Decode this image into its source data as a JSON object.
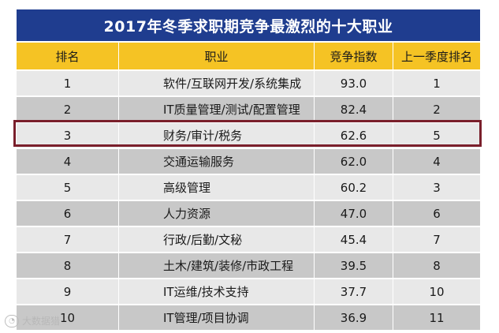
{
  "title": "2017年冬季求职期竞争最激烈的十大职业",
  "headers": [
    "排名",
    "职业",
    "竞争指数",
    "上一季度排名"
  ],
  "rows": [
    {
      "rank": "1",
      "job": "软件/互联网开发/系统集成",
      "score": "93.0",
      "prev": "1"
    },
    {
      "rank": "2",
      "job": "IT质量管理/测试/配置管理",
      "score": "82.4",
      "prev": "2"
    },
    {
      "rank": "3",
      "job": "财务/审计/税务",
      "score": "62.6",
      "prev": "5"
    },
    {
      "rank": "4",
      "job": "交通运输服务",
      "score": "62.0",
      "prev": "4"
    },
    {
      "rank": "5",
      "job": "高级管理",
      "score": "60.2",
      "prev": "3"
    },
    {
      "rank": "6",
      "job": "人力资源",
      "score": "47.0",
      "prev": "6"
    },
    {
      "rank": "7",
      "job": "行政/后勤/文秘",
      "score": "45.4",
      "prev": "7"
    },
    {
      "rank": "8",
      "job": "土木/建筑/装修/市政工程",
      "score": "39.5",
      "prev": "8"
    },
    {
      "rank": "9",
      "job": "IT运维/技术支持",
      "score": "37.7",
      "prev": "10"
    },
    {
      "rank": "10",
      "job": "IT管理/项目协调",
      "score": "36.9",
      "prev": "11"
    }
  ],
  "highlighted_rank": "3",
  "watermark": {
    "text": "大数据猎"
  },
  "colors": {
    "title_bg": "#1f3d8f",
    "header_bg": "#f5c324",
    "row_light": "#e8e8e8",
    "row_dark": "#c8c8c8",
    "highlight_border": "#7a1f2b"
  }
}
